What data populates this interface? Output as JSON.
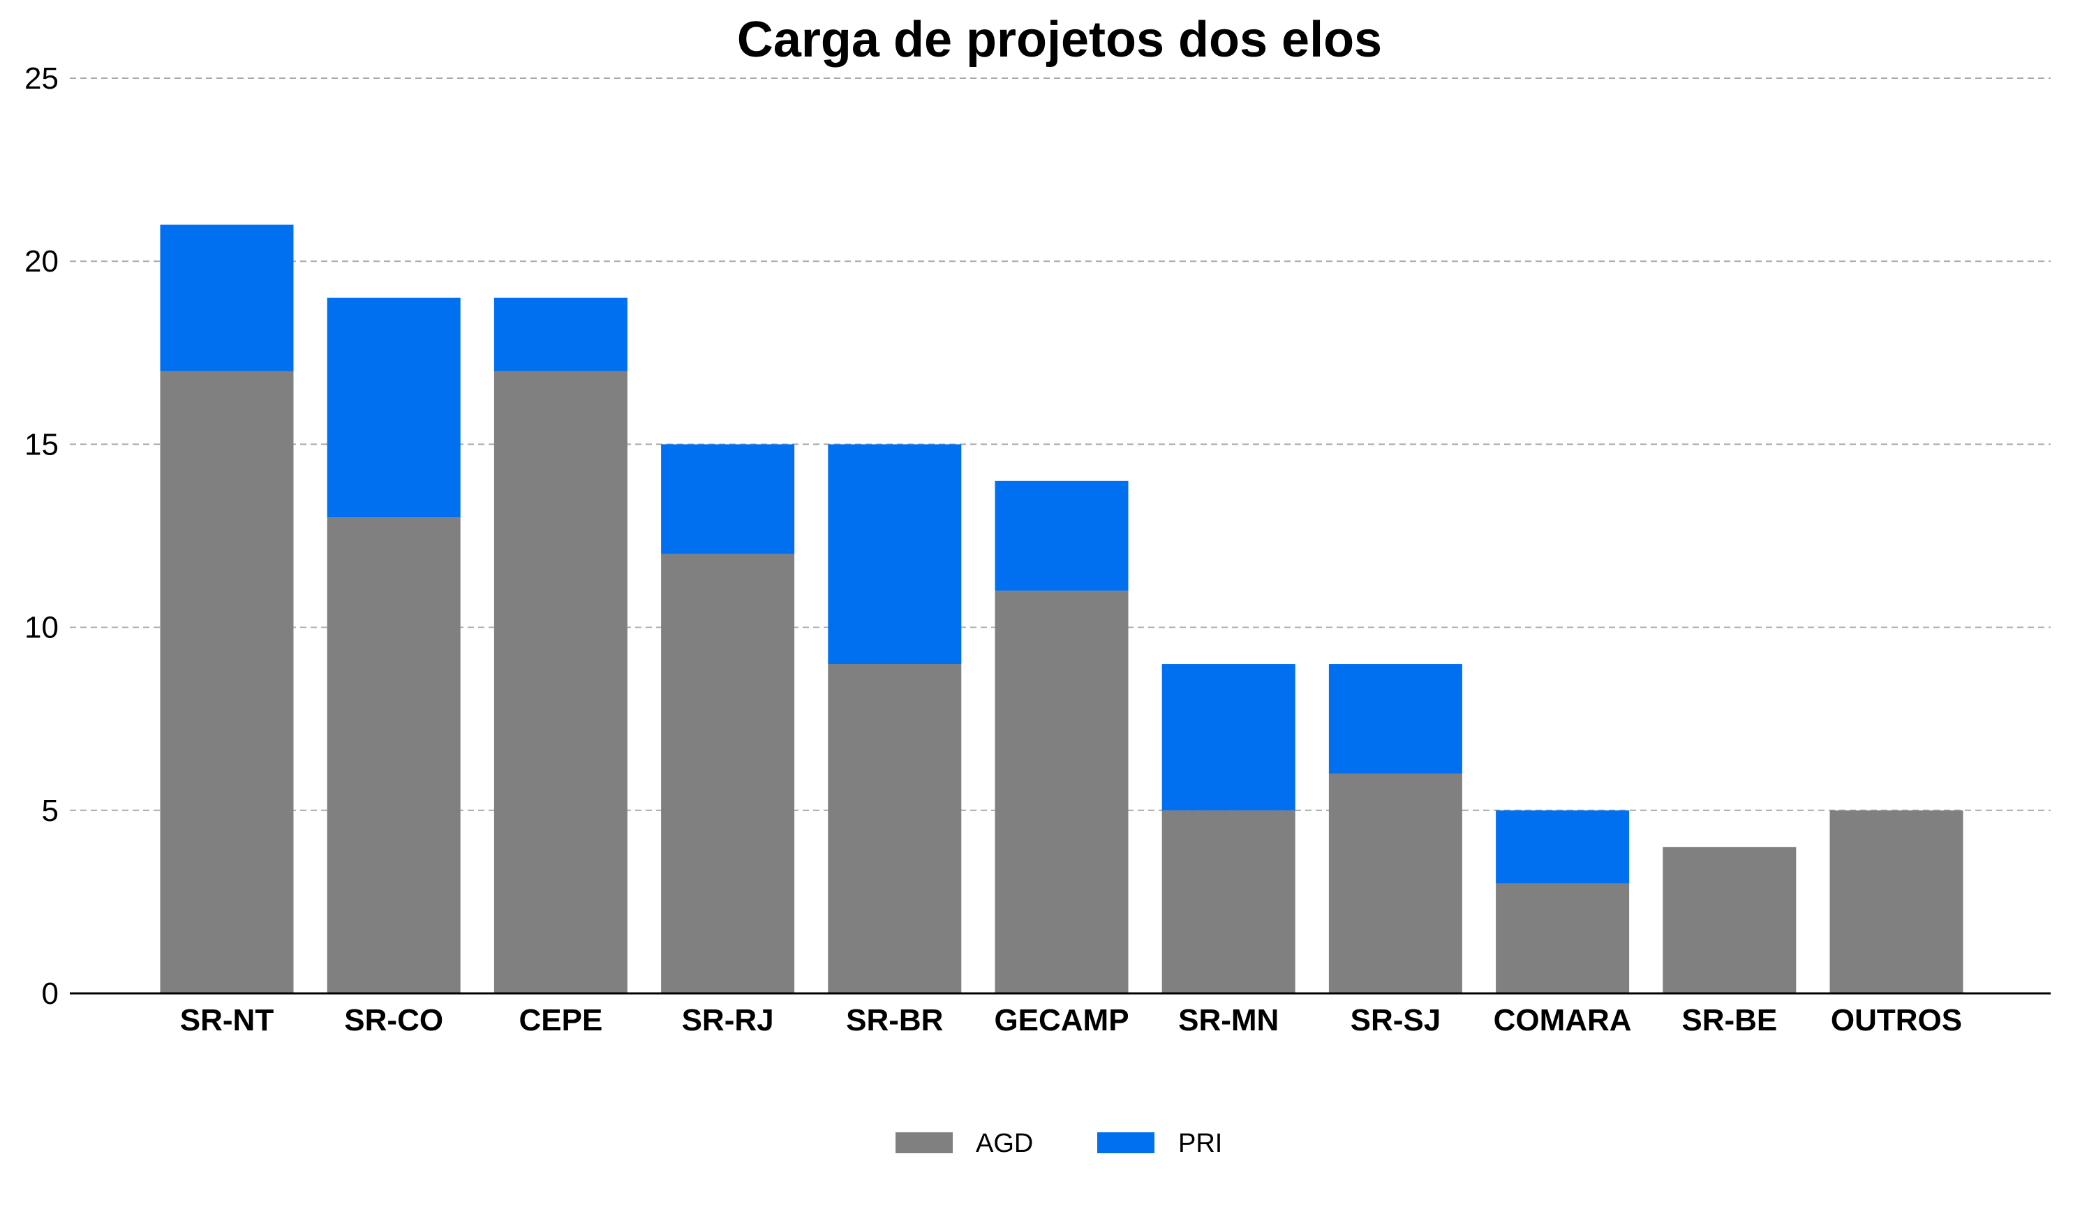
{
  "chart_data": {
    "type": "bar",
    "stacked": true,
    "title": "Carga de projetos dos elos",
    "xlabel": "",
    "ylabel": "",
    "ylim": [
      0,
      25
    ],
    "yticks": [
      0,
      5,
      10,
      15,
      20,
      25
    ],
    "grid": "horizontal-dashed",
    "legend_position": "bottom-center",
    "categories": [
      "SR-NT",
      "SR-CO",
      "CEPE",
      "SR-RJ",
      "SR-BR",
      "GECAMP",
      "SR-MN",
      "SR-SJ",
      "COMARA",
      "SR-BE",
      "OUTROS"
    ],
    "series": [
      {
        "name": "AGD",
        "color": "#808080",
        "values": [
          17,
          13,
          17,
          12,
          9,
          11,
          5,
          6,
          3,
          4,
          5
        ]
      },
      {
        "name": "PRI",
        "color": "#0070f0",
        "values": [
          4,
          6,
          2,
          3,
          6,
          3,
          4,
          3,
          2,
          0,
          0
        ]
      }
    ]
  }
}
